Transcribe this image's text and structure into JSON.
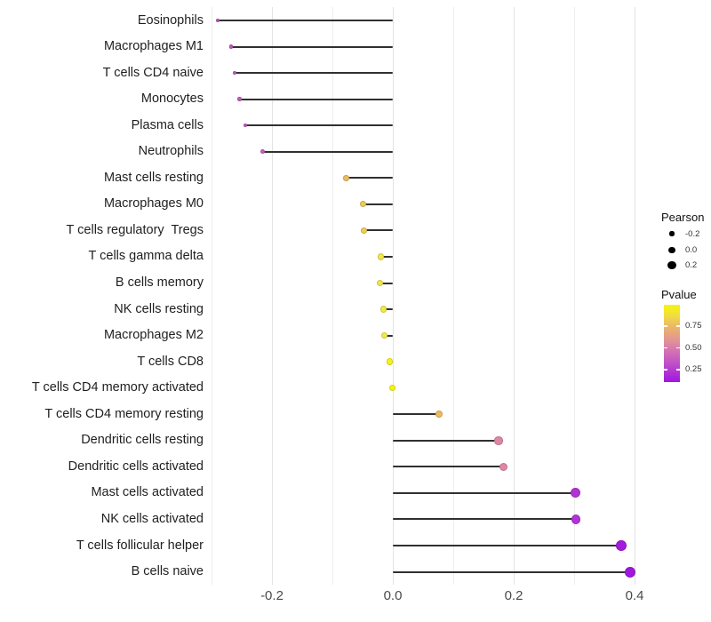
{
  "chart_data": {
    "type": "lollipop",
    "title": "",
    "xlabel": "",
    "ylabel": "",
    "grid": "vertical-only",
    "x_range": [
      -0.32,
      0.43
    ],
    "x_ticks": [
      {
        "label": "-0.2",
        "value": -0.2
      },
      {
        "label": "0.0",
        "value": 0.0
      },
      {
        "label": "0.2",
        "value": 0.2
      },
      {
        "label": "0.4",
        "value": 0.4
      }
    ],
    "minor_gridlines": [
      -0.3,
      -0.1,
      0.1,
      0.3
    ],
    "rows": [
      {
        "label": "Eosinophils",
        "pearson": -0.29,
        "pvalue": 0.36,
        "color": "#bc54c2"
      },
      {
        "label": "Macrophages M1",
        "pearson": -0.268,
        "pvalue": 0.37,
        "color": "#c058c1"
      },
      {
        "label": "T cells CD4 naive",
        "pearson": -0.262,
        "pvalue": 0.37,
        "color": "#c159c1"
      },
      {
        "label": "Monocytes",
        "pearson": -0.254,
        "pvalue": 0.38,
        "color": "#c25cc1"
      },
      {
        "label": "Plasma cells",
        "pearson": -0.244,
        "pvalue": 0.37,
        "color": "#c357c0"
      },
      {
        "label": "Neutrophils",
        "pearson": -0.216,
        "pvalue": 0.4,
        "color": "#c75fbe"
      },
      {
        "label": "Mast cells resting",
        "pearson": -0.077,
        "pvalue": 0.75,
        "color": "#ecba62"
      },
      {
        "label": "Macrophages M0",
        "pearson": -0.049,
        "pvalue": 0.8,
        "color": "#edcb55"
      },
      {
        "label": "T cells regulatory  Tregs",
        "pearson": -0.048,
        "pvalue": 0.8,
        "color": "#edcd54"
      },
      {
        "label": "T cells gamma delta",
        "pearson": -0.02,
        "pvalue": 0.88,
        "color": "#f2e44a"
      },
      {
        "label": "B cells memory",
        "pearson": -0.021,
        "pvalue": 0.88,
        "color": "#f2e54a"
      },
      {
        "label": "NK cells resting",
        "pearson": -0.016,
        "pvalue": 0.9,
        "color": "#f3e846"
      },
      {
        "label": "Macrophages M2",
        "pearson": -0.014,
        "pvalue": 0.91,
        "color": "#f3ea44"
      },
      {
        "label": "T cells CD8",
        "pearson": -0.005,
        "pvalue": 0.96,
        "color": "#f6f218"
      },
      {
        "label": "T cells CD4 memory activated",
        "pearson": -0.001,
        "pvalue": 0.99,
        "color": "#f7f50a"
      },
      {
        "label": "T cells CD4 memory resting",
        "pearson": 0.076,
        "pvalue": 0.74,
        "color": "#edba5e"
      },
      {
        "label": "Dendritic cells resting",
        "pearson": 0.175,
        "pvalue": 0.55,
        "color": "#dd86a6"
      },
      {
        "label": "Dendritic cells activated",
        "pearson": 0.183,
        "pvalue": 0.55,
        "color": "#dd86a6"
      },
      {
        "label": "Mast cells activated",
        "pearson": 0.302,
        "pvalue": 0.18,
        "color": "#b233d4"
      },
      {
        "label": "NK cells activated",
        "pearson": 0.303,
        "pvalue": 0.18,
        "color": "#b233d4"
      },
      {
        "label": "T cells follicular helper",
        "pearson": 0.378,
        "pvalue": 0.12,
        "color": "#a51bdd"
      },
      {
        "label": "B cells naive",
        "pearson": 0.392,
        "pvalue": 0.1,
        "color": "#a117e0"
      }
    ],
    "legend": {
      "size": {
        "title": "Pearson",
        "entries": [
          {
            "label": "-0.2",
            "value": -0.2
          },
          {
            "label": "0.0",
            "value": 0.0
          },
          {
            "label": "0.2",
            "value": 0.2
          }
        ]
      },
      "color": {
        "title": "Pvalue",
        "top_value": 0.995,
        "bottom_value": 0.105,
        "ticks": [
          {
            "label": "0.75",
            "p": 0.75
          },
          {
            "label": "0.50",
            "p": 0.5
          },
          {
            "label": "0.25",
            "p": 0.25
          }
        ],
        "gradient_stops": [
          {
            "pos": 0,
            "color": "#f5f50f"
          },
          {
            "pos": 8,
            "color": "#f3e929"
          },
          {
            "pos": 16,
            "color": "#f0d84a"
          },
          {
            "pos": 27,
            "color": "#ecba62"
          },
          {
            "pos": 40,
            "color": "#e59f87"
          },
          {
            "pos": 50,
            "color": "#de8aa2"
          },
          {
            "pos": 57,
            "color": "#d878ad"
          },
          {
            "pos": 66,
            "color": "#cc64bb"
          },
          {
            "pos": 74,
            "color": "#c155c4"
          },
          {
            "pos": 83,
            "color": "#b83ecf"
          },
          {
            "pos": 92,
            "color": "#ab28d9"
          },
          {
            "pos": 100,
            "color": "#a016e2"
          }
        ]
      }
    }
  }
}
